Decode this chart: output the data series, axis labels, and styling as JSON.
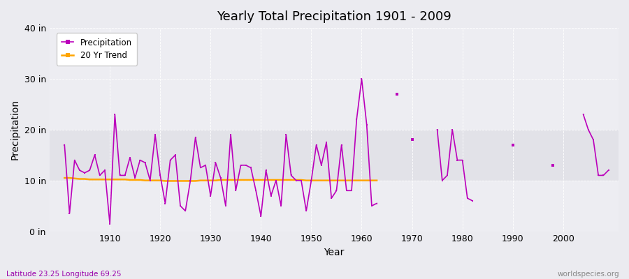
{
  "title": "Yearly Total Precipitation 1901 - 2009",
  "xlabel": "Year",
  "ylabel": "Precipitation",
  "subtitle": "Latitude 23.25 Longitude 69.25",
  "watermark": "worldspecies.org",
  "ylim": [
    0,
    40
  ],
  "yticks": [
    0,
    10,
    20,
    30,
    40
  ],
  "ytick_labels": [
    "0 in",
    "10 in",
    "20 in",
    "30 in",
    "40 in"
  ],
  "xlim": [
    1898,
    2011
  ],
  "xticks": [
    1910,
    1920,
    1930,
    1940,
    1950,
    1960,
    1970,
    1980,
    1990,
    2000
  ],
  "bg_color": "#ebebf0",
  "plot_bg_light": "#ededf2",
  "plot_bg_dark": "#e2e2e8",
  "precip_color": "#bb00bb",
  "trend_color": "#ffa500",
  "precip_lw": 1.2,
  "trend_lw": 1.8,
  "segments": [
    {
      "years": [
        1901,
        1902,
        1903,
        1904,
        1905,
        1906,
        1907,
        1908,
        1909,
        1910,
        1911,
        1912,
        1913,
        1914,
        1915,
        1916,
        1917,
        1918,
        1919,
        1920,
        1921,
        1922,
        1923,
        1924,
        1925,
        1926,
        1927,
        1928,
        1929,
        1930,
        1931,
        1932,
        1933,
        1934,
        1935,
        1936,
        1937,
        1938,
        1939,
        1940,
        1941,
        1942,
        1943,
        1944,
        1945,
        1946,
        1947,
        1948,
        1949,
        1950,
        1951,
        1952,
        1953,
        1954,
        1955,
        1956,
        1957,
        1958,
        1959,
        1960,
        1961,
        1962,
        1963
      ],
      "values": [
        17,
        3.5,
        14,
        12,
        11.5,
        12,
        15,
        11,
        12,
        1.5,
        23,
        11,
        11,
        14.5,
        10.5,
        14,
        13.5,
        10,
        19,
        11,
        5.5,
        14,
        15,
        5,
        4,
        10,
        18.5,
        12.5,
        13,
        7,
        13.5,
        10.5,
        5,
        19,
        8,
        13,
        13,
        12.5,
        8,
        3,
        12,
        7,
        10,
        5,
        19,
        11,
        10,
        10,
        4,
        10,
        17,
        13,
        17.5,
        6.5,
        8,
        17,
        8,
        8,
        22,
        30,
        21,
        5,
        5.5
      ]
    },
    {
      "years": [
        1975,
        1976,
        1977,
        1978,
        1979,
        1980,
        1981,
        1982
      ],
      "values": [
        20,
        10,
        11,
        20,
        14,
        14,
        6.5,
        6
      ]
    },
    {
      "years": [
        2004,
        2005,
        2006,
        2007,
        2008,
        2009
      ],
      "values": [
        23,
        20,
        18,
        11,
        11,
        12
      ]
    }
  ],
  "isolated": [
    {
      "year": 1967,
      "value": 27
    },
    {
      "year": 1970,
      "value": 18
    },
    {
      "year": 1990,
      "value": 17
    },
    {
      "year": 1998,
      "value": 13
    }
  ],
  "trend_years": [
    1901,
    1902,
    1903,
    1904,
    1905,
    1906,
    1907,
    1908,
    1909,
    1910,
    1911,
    1912,
    1913,
    1914,
    1915,
    1916,
    1917,
    1918,
    1919,
    1920,
    1921,
    1922,
    1923,
    1924,
    1925,
    1926,
    1927,
    1928,
    1929,
    1930,
    1931,
    1932,
    1933,
    1934,
    1935,
    1936,
    1937,
    1938,
    1939,
    1940,
    1941,
    1942,
    1943,
    1944,
    1945,
    1946,
    1947,
    1948,
    1949,
    1950,
    1951,
    1952,
    1953,
    1954,
    1955,
    1956,
    1957,
    1958,
    1959,
    1960,
    1961,
    1962,
    1963
  ],
  "trend_values": [
    10.5,
    10.5,
    10.4,
    10.3,
    10.3,
    10.2,
    10.2,
    10.2,
    10.2,
    10.2,
    10.2,
    10.2,
    10.2,
    10.1,
    10.1,
    10.1,
    10.0,
    10.0,
    10.0,
    10.0,
    9.9,
    9.9,
    9.9,
    9.9,
    9.9,
    9.9,
    9.9,
    10.0,
    10.0,
    10.0,
    10.0,
    10.1,
    10.1,
    10.1,
    10.1,
    10.1,
    10.1,
    10.1,
    10.1,
    10.1,
    10.1,
    10.1,
    10.1,
    10.1,
    10.1,
    10.1,
    10.1,
    10.1,
    10.0,
    10.0,
    10.0,
    10.0,
    10.0,
    10.0,
    10.0,
    10.0,
    10.0,
    10.0,
    10.0,
    10.0,
    10.0,
    10.0,
    10.0
  ]
}
